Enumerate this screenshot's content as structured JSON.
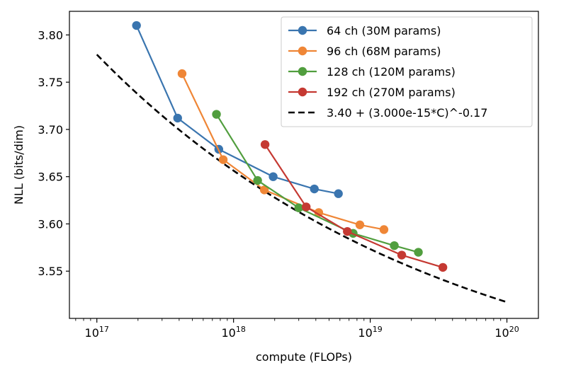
{
  "chart_data": {
    "type": "line",
    "title": "",
    "xlabel": "compute (FLOPs)",
    "ylabel": "NLL (bits/dim)",
    "x_scale": "log",
    "xlim": [
      6.3e+16,
      1.7e+20
    ],
    "ylim": [
      3.5,
      3.825
    ],
    "x_ticks": [
      {
        "value": 1e+17,
        "base": "10",
        "exp": "17"
      },
      {
        "value": 1e+18,
        "base": "10",
        "exp": "18"
      },
      {
        "value": 1e+19,
        "base": "10",
        "exp": "19"
      },
      {
        "value": 1e+20,
        "base": "10",
        "exp": "20"
      }
    ],
    "y_ticks": [
      {
        "value": 3.55,
        "label": "3.55"
      },
      {
        "value": 3.6,
        "label": "3.60"
      },
      {
        "value": 3.65,
        "label": "3.65"
      },
      {
        "value": 3.7,
        "label": "3.70"
      },
      {
        "value": 3.75,
        "label": "3.75"
      },
      {
        "value": 3.8,
        "label": "3.80"
      }
    ],
    "grid": false,
    "legend_position": "top-right",
    "series": [
      {
        "name": "64 ch (30M params)",
        "color": "#3a75af",
        "points": [
          {
            "x": 1.95e+17,
            "y": 3.81
          },
          {
            "x": 3.9e+17,
            "y": 3.712
          },
          {
            "x": 7.8e+17,
            "y": 3.679
          },
          {
            "x": 1.95e+18,
            "y": 3.65
          },
          {
            "x": 3.9e+18,
            "y": 3.637
          },
          {
            "x": 5.85e+18,
            "y": 3.632
          }
        ]
      },
      {
        "name": "96 ch (68M params)",
        "color": "#ef8636",
        "points": [
          {
            "x": 4.2e+17,
            "y": 3.759
          },
          {
            "x": 8.4e+17,
            "y": 3.668
          },
          {
            "x": 1.68e+18,
            "y": 3.636
          },
          {
            "x": 4.2e+18,
            "y": 3.612
          },
          {
            "x": 8.4e+18,
            "y": 3.599
          },
          {
            "x": 1.26e+19,
            "y": 3.594
          }
        ]
      },
      {
        "name": "128 ch (120M params)",
        "color": "#519e3e",
        "points": [
          {
            "x": 7.5e+17,
            "y": 3.716
          },
          {
            "x": 1.5e+18,
            "y": 3.646
          },
          {
            "x": 3e+18,
            "y": 3.617
          },
          {
            "x": 7.5e+18,
            "y": 3.59
          },
          {
            "x": 1.5e+19,
            "y": 3.577
          },
          {
            "x": 2.25e+19,
            "y": 3.57
          }
        ]
      },
      {
        "name": "192 ch (270M params)",
        "color": "#c53932",
        "points": [
          {
            "x": 1.7e+18,
            "y": 3.684
          },
          {
            "x": 3.4e+18,
            "y": 3.618
          },
          {
            "x": 6.8e+18,
            "y": 3.592
          },
          {
            "x": 1.7e+19,
            "y": 3.567
          },
          {
            "x": 3.4e+19,
            "y": 3.554
          }
        ]
      }
    ],
    "fit": {
      "name": "3.40 + (3.000e-15*C)^-0.17",
      "color": "#000000",
      "style": "dashed",
      "intercept": 3.4,
      "scale": 3e-15,
      "exponent": -0.17,
      "x_range": [
        1e+17,
        1e+20
      ]
    }
  }
}
